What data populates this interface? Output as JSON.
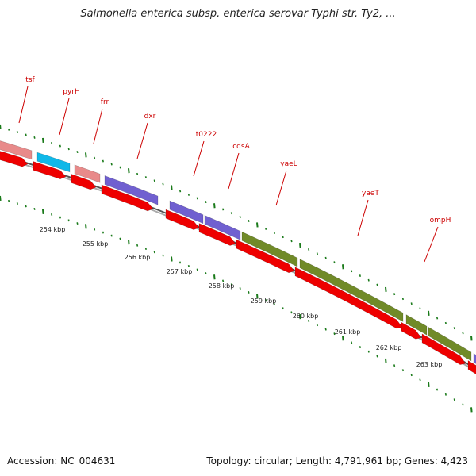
{
  "title": "Salmonella enterica subsp. enterica serovar Typhi str. Ty2, ...",
  "footer": {
    "accession": "Accession: NC_004631",
    "stats": "Topology: circular; Length: 4,791,961 bp; Genes: 4,423"
  },
  "colors": {
    "backbone": "#7a7a7a",
    "tick": "#1a7a1a",
    "label_line": "#cc0000",
    "red_feature": "#ee0000",
    "pink_feature": "#e88a8a",
    "cyan_feature": "#10b8e8",
    "purple_feature": "#7060d0",
    "olive_feature": "#708a28"
  },
  "gene_labels": [
    "tsf",
    "pyrH",
    "frr",
    "dxr",
    "t0222",
    "cdsA",
    "yaeL",
    "yaeT",
    "ompH"
  ],
  "kbp_labels": [
    "254 kbp",
    "255 kbp",
    "256 kbp",
    "257 kbp",
    "258 kbp",
    "259 kbp",
    "260 kbp",
    "261 kbp",
    "262 kbp",
    "263 kbp"
  ]
}
